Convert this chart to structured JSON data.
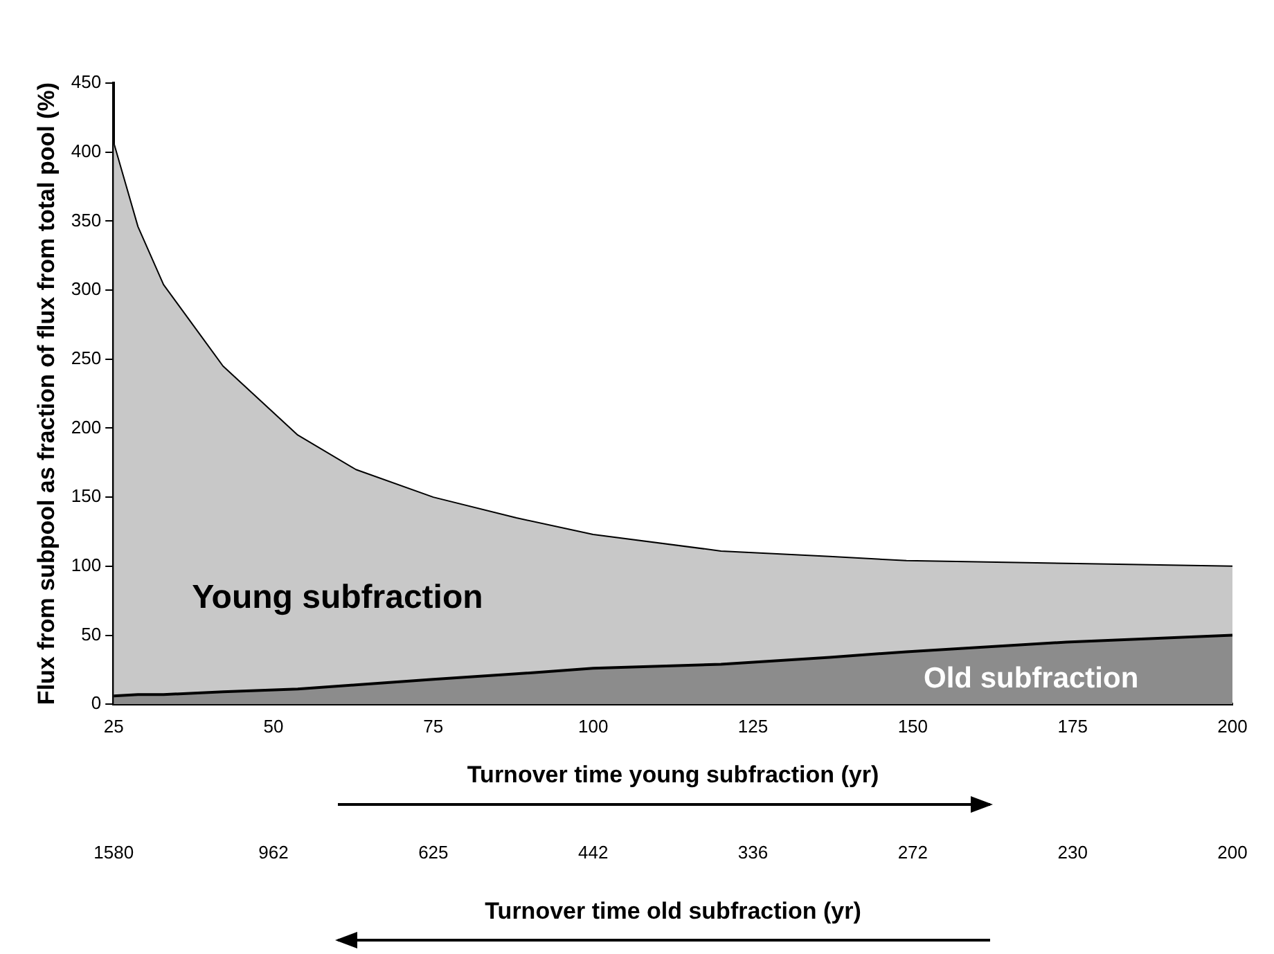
{
  "chart_data": {
    "type": "area",
    "ylabel": "Flux from subpool as fraction of flux from total pool (%)",
    "xlabel": "Turnover time young subfraction (yr)",
    "x2label": "Turnover time old subfraction (yr)",
    "x": [
      25,
      28.8,
      32.8,
      42.1,
      53.8,
      62.9,
      75,
      88,
      100,
      120,
      137,
      149,
      174,
      200
    ],
    "series": [
      {
        "name": "Old subfraction",
        "color": "#8c8c8c",
        "values": [
          6,
          7,
          7,
          9,
          11,
          14,
          18,
          22,
          26,
          29,
          34,
          38,
          45,
          50
        ]
      },
      {
        "name": "Young subfraction",
        "color": "#c8c8c8",
        "values": [
          407,
          346,
          304,
          245,
          195,
          170,
          150,
          135,
          123,
          111,
          107,
          104,
          102,
          100
        ]
      }
    ],
    "xlim": [
      25,
      200
    ],
    "xticks": [
      25,
      50,
      75,
      100,
      125,
      150,
      175,
      200
    ],
    "annotations": [
      "1580",
      "962",
      "625",
      "442",
      "336",
      "272",
      "230",
      "200"
    ],
    "ylim": [
      0,
      450
    ],
    "yticks": [
      0,
      50,
      100,
      150,
      200,
      250,
      300,
      350,
      400,
      450
    ],
    "grid": false,
    "legend": false
  }
}
